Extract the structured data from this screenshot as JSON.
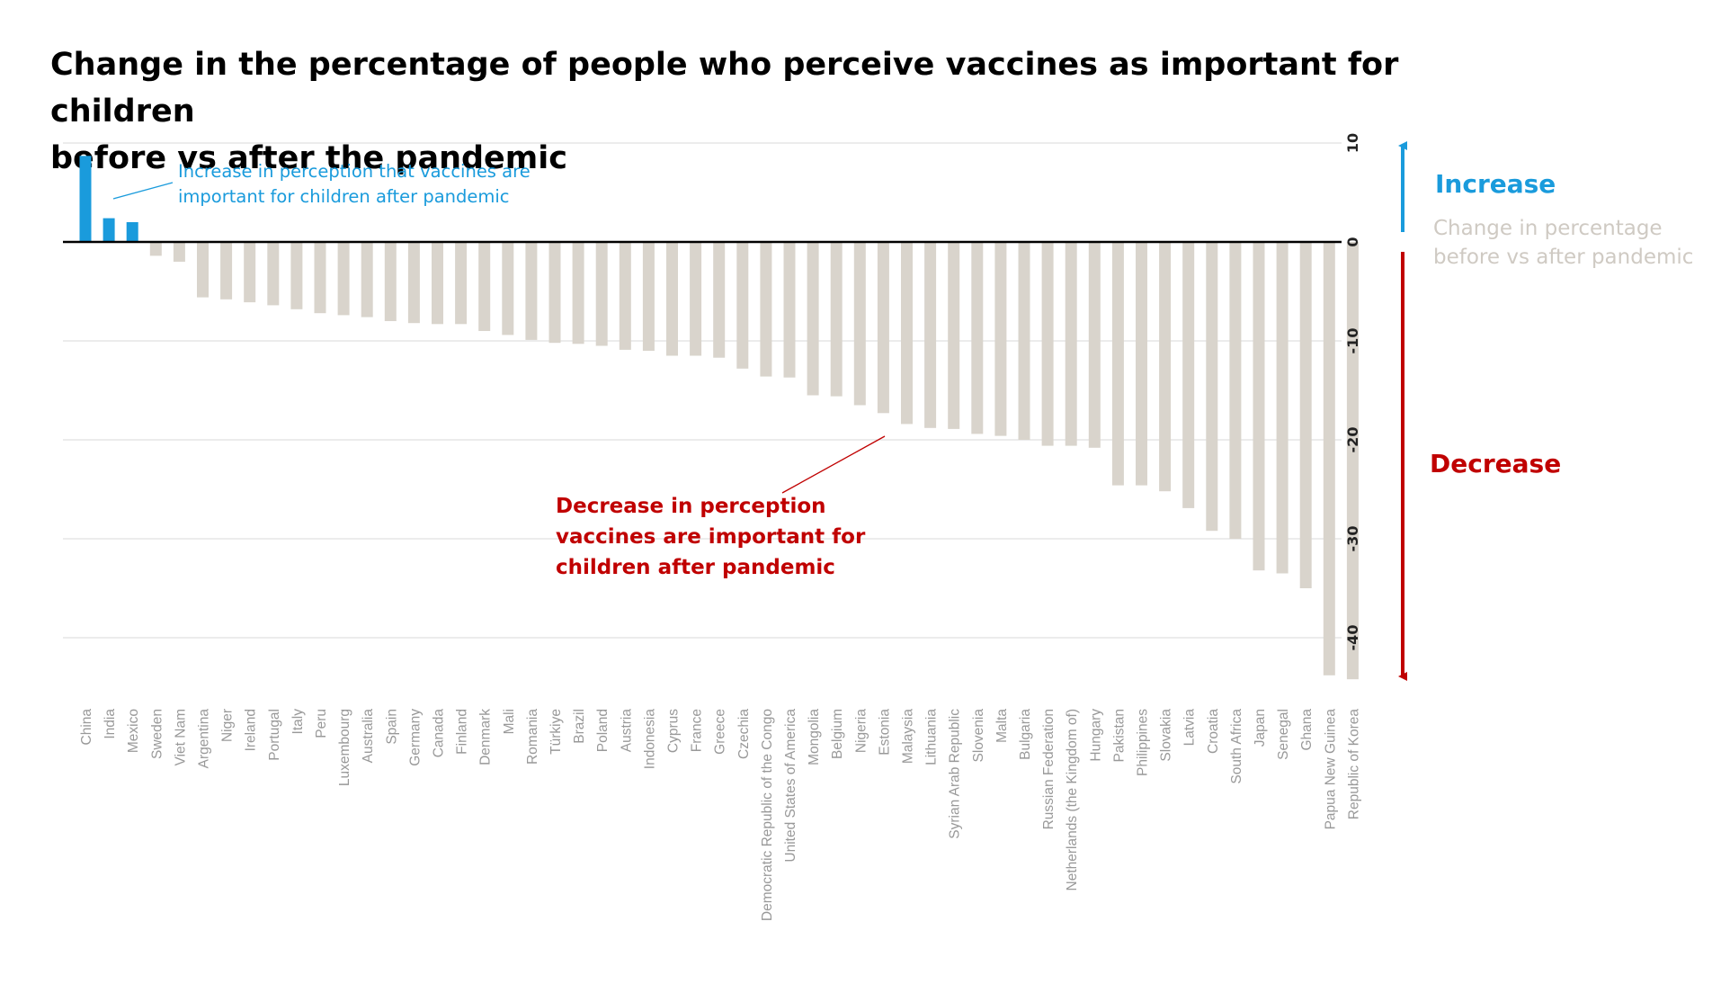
{
  "title": {
    "line1": "Change in the percentage of people who perceive vaccines as important for children",
    "line2": "before vs after the pandemic"
  },
  "legend": {
    "increase_label": "Increase",
    "decrease_label": "Decrease",
    "measure_line1": "Change in percentage",
    "measure_line2": "before vs after pandemic"
  },
  "annotations": {
    "increase": [
      "Increase in perception that vaccines are",
      "important for children after pandemic"
    ],
    "decrease": [
      "Decrease in perception",
      "vaccines are important for",
      "children after pandemic"
    ]
  },
  "colors": {
    "increase": "#1a9bdc",
    "decrease_text": "#c00000",
    "decrease_bar": "#d9d4cc",
    "grid": "#d9d9d9",
    "tick_text": "#999999",
    "axis_text": "#222222",
    "measure_text": "#cfcac3"
  },
  "chart_data": {
    "type": "bar",
    "title": "Change in the percentage of people who perceive vaccines as important for children before vs after the pandemic",
    "xlabel": "",
    "ylabel": "Change in percentage before vs after pandemic",
    "ylim": [
      -45,
      10
    ],
    "yticks": [
      10,
      0,
      -10,
      -20,
      -30,
      -40
    ],
    "grid": true,
    "categories": [
      "China",
      "India",
      "Mexico",
      "Sweden",
      "Viet Nam",
      "Argentina",
      "Niger",
      "Ireland",
      "Portugal",
      "Italy",
      "Peru",
      "Luxembourg",
      "Australia",
      "Spain",
      "Germany",
      "Canada",
      "Finland",
      "Denmark",
      "Mali",
      "Romania",
      "Türkiye",
      "Brazil",
      "Poland",
      "Austria",
      "Indonesia",
      "Cyprus",
      "France",
      "Greece",
      "Czechia",
      "Democratic Republic of the Congo",
      "United States of America",
      "Mongolia",
      "Belgium",
      "Nigeria",
      "Estonia",
      "Malaysia",
      "Lithuania",
      "Syrian Arab Republic",
      "Slovenia",
      "Malta",
      "Bulgaria",
      "Russian Federation",
      "Netherlands (the Kingdom of)",
      "Hungary",
      "Pakistan",
      "Philippines",
      "Slovakia",
      "Latvia",
      "Croatia",
      "South Africa",
      "Japan",
      "Senegal",
      "Ghana",
      "Papua New Guinea",
      "Republic of Korea"
    ],
    "values": [
      8.7,
      2.4,
      2.0,
      -1.4,
      -2.0,
      -5.6,
      -5.8,
      -6.1,
      -6.4,
      -6.8,
      -7.2,
      -7.4,
      -7.6,
      -8.0,
      -8.2,
      -8.3,
      -8.3,
      -9.0,
      -9.4,
      -9.9,
      -10.2,
      -10.3,
      -10.5,
      -10.9,
      -11.0,
      -11.5,
      -11.5,
      -11.7,
      -12.8,
      -13.6,
      -13.7,
      -15.5,
      -15.6,
      -16.5,
      -17.3,
      -18.4,
      -18.8,
      -18.9,
      -19.4,
      -19.6,
      -20.0,
      -20.6,
      -20.6,
      -20.8,
      -24.6,
      -24.6,
      -25.2,
      -26.9,
      -29.2,
      -30.0,
      -33.2,
      -33.5,
      -35.0,
      -43.8,
      -44.2
    ]
  }
}
